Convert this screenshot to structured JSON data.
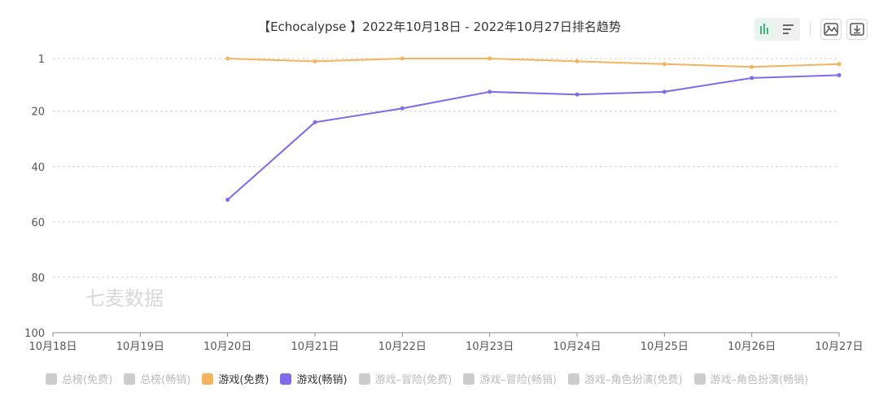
{
  "colors": {
    "free": "#f3b35f",
    "grossing": "#7d6bea",
    "inactive": "#cccccc",
    "grid": "#d0d0d0"
  },
  "toolbar": {
    "bar_icon": "bar-chart-icon",
    "list_icon": "list-icon",
    "image_icon": "image-icon",
    "download_icon": "download-icon"
  },
  "watermark": "七麦数据",
  "chart_data": {
    "type": "line",
    "title": "【Echocalypse 】2022年10月18日 - 2022年10月27日排名趋势",
    "xlabel": "",
    "ylabel": "",
    "x": [
      "10月18日",
      "10月19日",
      "10月20日",
      "10月21日",
      "10月22日",
      "10月23日",
      "10月24日",
      "10月25日",
      "10月26日",
      "10月27日"
    ],
    "y_ticks": [
      1,
      20,
      40,
      60,
      80,
      100
    ],
    "ylim": [
      100,
      1
    ],
    "y_inverted": true,
    "grid": true,
    "legend_position": "bottom",
    "series": [
      {
        "name": "游戏(免费)",
        "color": "#f3b35f",
        "values": [
          null,
          null,
          1,
          2,
          1,
          1,
          2,
          3,
          4,
          3
        ]
      },
      {
        "name": "游戏(畅销)",
        "color": "#7d6bea",
        "values": [
          null,
          null,
          52,
          24,
          19,
          13,
          14,
          13,
          8,
          7
        ]
      }
    ],
    "legend": [
      {
        "label": "总榜(免费)",
        "active": false
      },
      {
        "label": "总榜(畅销)",
        "active": false
      },
      {
        "label": "游戏(免费)",
        "active": true,
        "color": "#f3b35f"
      },
      {
        "label": "游戏(畅销)",
        "active": true,
        "color": "#7d6bea"
      },
      {
        "label": "游戏–冒险(免费)",
        "active": false
      },
      {
        "label": "游戏–冒险(畅销)",
        "active": false
      },
      {
        "label": "游戏–角色扮演(免费)",
        "active": false
      },
      {
        "label": "游戏–角色扮演(畅销)",
        "active": false
      }
    ]
  }
}
